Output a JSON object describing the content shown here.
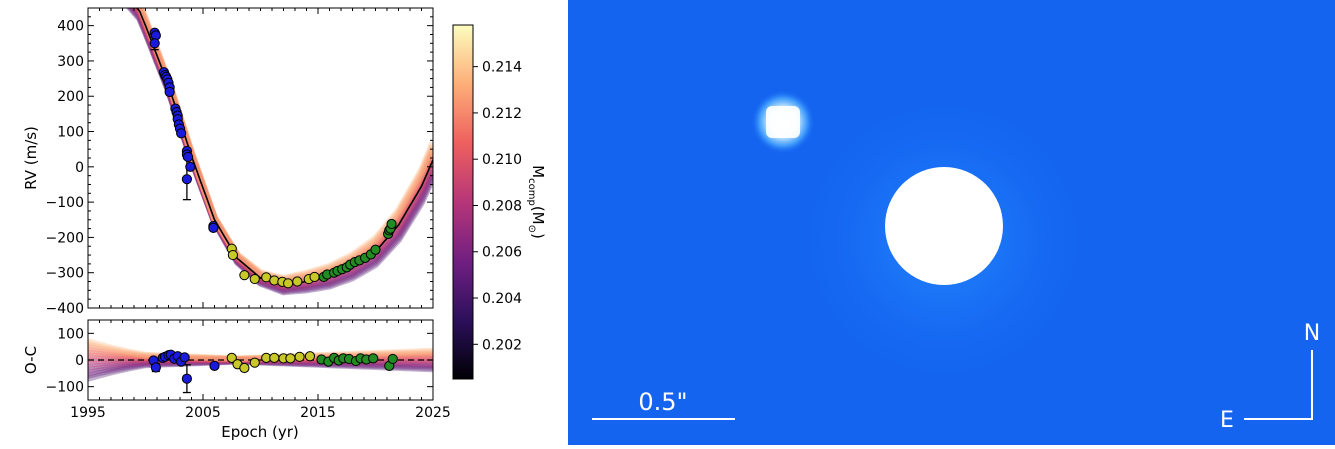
{
  "chart_data": [
    {
      "type": "scatter",
      "panel": "radial velocity",
      "ylabel": "RV (m/s)",
      "xlim": [
        1995,
        2025
      ],
      "ylim": [
        -400,
        450
      ],
      "y_ticks": [
        "400",
        "300",
        "200",
        "100",
        "0",
        "−100",
        "−200",
        "−300",
        "−400"
      ],
      "y_tick_values": [
        400,
        300,
        200,
        100,
        0,
        -100,
        -200,
        -300,
        -400
      ],
      "model_line_color": "#000000",
      "series": [
        {
          "color": "#1a1adc",
          "points": [
            [
              2000.8,
              380
            ],
            [
              2000.9,
              372
            ],
            [
              2000.8,
              350
            ],
            [
              2001.6,
              268
            ],
            [
              2001.7,
              260
            ],
            [
              2001.8,
              255
            ],
            [
              2001.9,
              248
            ],
            [
              2002.0,
              238
            ],
            [
              2002.1,
              225
            ],
            [
              2002.1,
              212
            ],
            [
              2002.6,
              165
            ],
            [
              2002.7,
              155
            ],
            [
              2002.8,
              145
            ],
            [
              2002.8,
              135
            ],
            [
              2002.9,
              120
            ],
            [
              2003.0,
              108
            ],
            [
              2003.1,
              95
            ],
            [
              2003.6,
              45
            ],
            [
              2003.6,
              35
            ],
            [
              2003.7,
              28
            ],
            [
              2003.9,
              0
            ],
            [
              2003.6,
              -35
            ],
            [
              2005.9,
              -168
            ],
            [
              2005.9,
              -173
            ]
          ],
          "error_bars": [
            [
              2000.8,
              350,
              18
            ],
            [
              2003.6,
              -35,
              58
            ]
          ]
        },
        {
          "color": "#c8c828",
          "points": [
            [
              2007.5,
              -232
            ],
            [
              2007.6,
              -250
            ],
            [
              2008.6,
              -307
            ],
            [
              2009.5,
              -318
            ],
            [
              2010.5,
              -313
            ],
            [
              2011.2,
              -322
            ],
            [
              2011.9,
              -326
            ],
            [
              2012.4,
              -330
            ],
            [
              2013.2,
              -325
            ],
            [
              2014.2,
              -318
            ],
            [
              2014.7,
              -312
            ]
          ]
        },
        {
          "color": "#228c22",
          "points": [
            [
              2015.5,
              -312
            ],
            [
              2015.8,
              -305
            ],
            [
              2016.4,
              -300
            ],
            [
              2016.7,
              -295
            ],
            [
              2017.1,
              -290
            ],
            [
              2017.5,
              -285
            ],
            [
              2017.8,
              -277
            ],
            [
              2018.2,
              -270
            ],
            [
              2018.6,
              -265
            ],
            [
              2019.1,
              -258
            ],
            [
              2019.6,
              -248
            ],
            [
              2020.0,
              -235
            ],
            [
              2021.1,
              -190
            ],
            [
              2021.2,
              -180
            ],
            [
              2021.3,
              -175
            ],
            [
              2021.4,
              -162
            ]
          ]
        }
      ],
      "model_curve": [
        [
          1995,
          520
        ],
        [
          1998,
          500
        ],
        [
          1999.5,
          440
        ],
        [
          2000,
          400
        ],
        [
          2002,
          230
        ],
        [
          2004,
          30
        ],
        [
          2006,
          -150
        ],
        [
          2008,
          -260
        ],
        [
          2010,
          -315
        ],
        [
          2012,
          -335
        ],
        [
          2014,
          -325
        ],
        [
          2016,
          -310
        ],
        [
          2018,
          -282
        ],
        [
          2020,
          -240
        ],
        [
          2022,
          -165
        ],
        [
          2024,
          -55
        ],
        [
          2025,
          20
        ]
      ]
    },
    {
      "type": "scatter",
      "panel": "residuals",
      "xlabel": "Epoch (yr)",
      "ylabel": "O-C",
      "xlim": [
        1995,
        2025
      ],
      "ylim": [
        -150,
        150
      ],
      "x_ticks": [
        "1995",
        "2005",
        "2015",
        "2025"
      ],
      "x_tick_values": [
        1995,
        2005,
        2015,
        2025
      ],
      "y_ticks": [
        "100",
        "0",
        "−100"
      ],
      "y_tick_values": [
        100,
        0,
        -100
      ],
      "series": [
        {
          "color": "#1a1adc",
          "points": [
            [
              2000.7,
              -2
            ],
            [
              2000.9,
              -28
            ],
            [
              2001.5,
              8
            ],
            [
              2001.7,
              12
            ],
            [
              2002.0,
              18
            ],
            [
              2002.2,
              20
            ],
            [
              2002.5,
              5
            ],
            [
              2002.8,
              14
            ],
            [
              2003.1,
              -6
            ],
            [
              2003.4,
              10
            ],
            [
              2003.6,
              -70
            ],
            [
              2006.0,
              -22
            ]
          ],
          "error_bars": [
            [
              2000.9,
              -28,
              15
            ],
            [
              2003.6,
              -70,
              52
            ]
          ]
        },
        {
          "color": "#c8c828",
          "points": [
            [
              2007.5,
              8
            ],
            [
              2008.0,
              -16
            ],
            [
              2008.6,
              -30
            ],
            [
              2009.5,
              -10
            ],
            [
              2010.5,
              8
            ],
            [
              2011.2,
              8
            ],
            [
              2012.0,
              6
            ],
            [
              2012.6,
              6
            ],
            [
              2013.4,
              12
            ],
            [
              2014.3,
              14
            ]
          ]
        },
        {
          "color": "#228c22",
          "points": [
            [
              2015.3,
              2
            ],
            [
              2015.9,
              -6
            ],
            [
              2016.4,
              8
            ],
            [
              2016.8,
              -2
            ],
            [
              2017.2,
              6
            ],
            [
              2017.7,
              4
            ],
            [
              2018.3,
              -4
            ],
            [
              2018.7,
              6
            ],
            [
              2019.2,
              2
            ],
            [
              2019.8,
              6
            ],
            [
              2021.2,
              -22
            ],
            [
              2021.5,
              4
            ]
          ]
        }
      ]
    },
    {
      "type": "colorbar",
      "label": "M",
      "label_sub": "comp",
      "label_unit": "(M",
      "label_unit_sub": "⊙",
      "label_tail": ")",
      "ticks": [
        "0.214",
        "0.212",
        "0.210",
        "0.208",
        "0.206",
        "0.204",
        "0.202"
      ],
      "tick_values": [
        0.214,
        0.212,
        0.21,
        0.208,
        0.206,
        0.204,
        0.202
      ],
      "range": [
        0.2005,
        0.2158
      ],
      "colormap": [
        "#000004",
        "#2c105c",
        "#711f81",
        "#b63679",
        "#ee605e",
        "#fdae78",
        "#fcfdbf"
      ]
    }
  ],
  "image": {
    "background": "#1464f0",
    "scale_label": "0.5\"",
    "north_label": "N",
    "east_label": "E"
  }
}
